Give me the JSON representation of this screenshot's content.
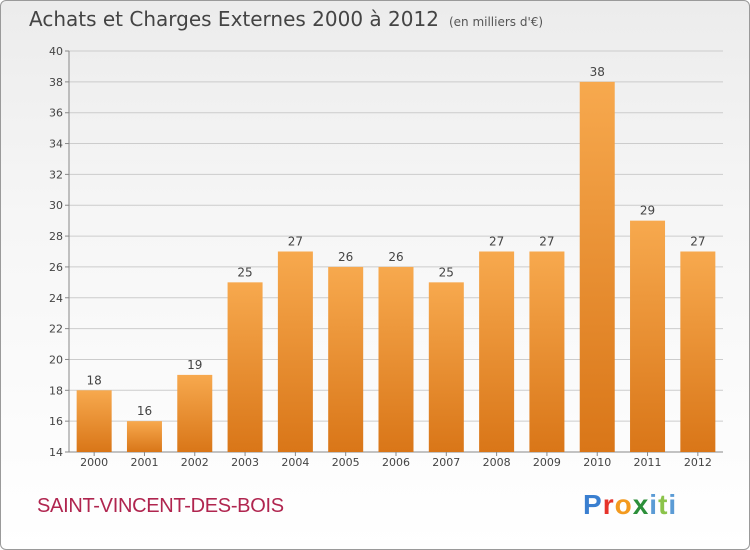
{
  "header": {
    "title": "Achats et Charges Externes 2000 à 2012",
    "unit": "(en milliers d'€)"
  },
  "commune": "SAINT-VINCENT-DES-BOIS",
  "logo": {
    "text": "Proxiti",
    "letters": [
      "P",
      "r",
      "o",
      "x",
      "i",
      "t",
      "i"
    ]
  },
  "colors": {
    "bar_light": "#f7a94e",
    "bar_dark": "#d97618",
    "commune": "#b0254f",
    "grid": "#cccccc"
  },
  "chart_data": {
    "type": "bar",
    "title": "Achats et Charges Externes 2000 à 2012",
    "subtitle": "(en milliers d'€)",
    "categories": [
      "2000",
      "2001",
      "2002",
      "2003",
      "2004",
      "2005",
      "2006",
      "2007",
      "2008",
      "2009",
      "2010",
      "2011",
      "2012"
    ],
    "values": [
      18,
      16,
      19,
      25,
      27,
      26,
      26,
      25,
      27,
      27,
      38,
      29,
      27
    ],
    "ylim": [
      14,
      40
    ],
    "yticks": [
      14,
      16,
      18,
      20,
      22,
      24,
      26,
      28,
      30,
      32,
      34,
      36,
      38,
      40
    ],
    "xlabel": "",
    "ylabel": "",
    "grid": true,
    "data_labels": true
  }
}
